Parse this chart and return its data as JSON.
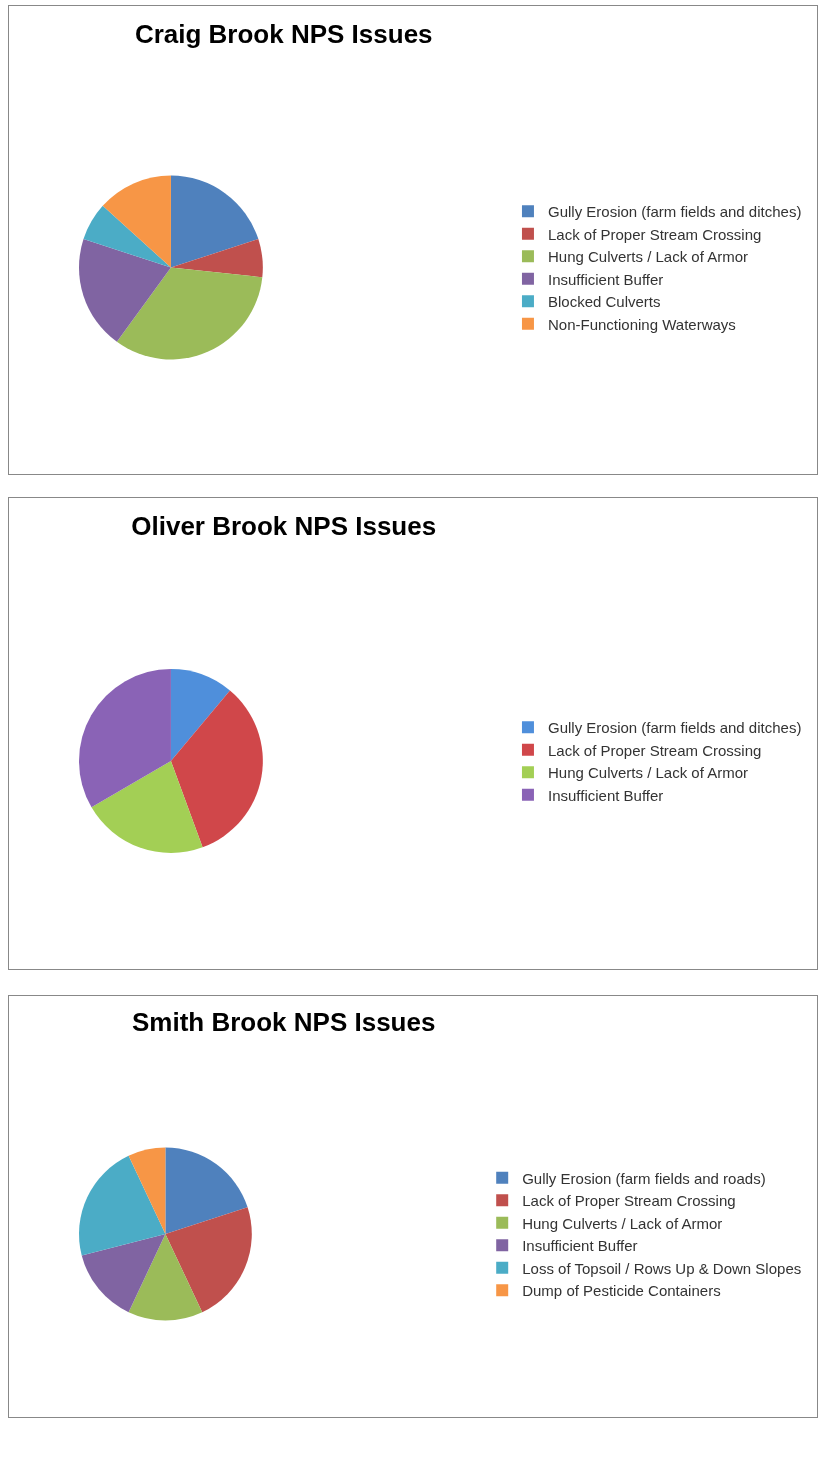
{
  "chart_data": [
    {
      "type": "pie",
      "title": "Craig Brook NPS Issues",
      "categories": [
        "Gully Erosion (farm fields and ditches)",
        "Lack of Proper Stream Crossing",
        "Hung Culverts / Lack of Armor",
        "Insufficient Buffer",
        "Blocked Culverts",
        "Non-Functioning Waterways"
      ],
      "values": [
        20,
        6.7,
        33.3,
        20,
        6.7,
        13.3
      ],
      "colors": [
        "#4f81bd",
        "#c0504d",
        "#9bbb59",
        "#8064a2",
        "#4bacc6",
        "#f79646"
      ],
      "legend": "right"
    },
    {
      "type": "pie",
      "title": "Oliver Brook NPS Issues",
      "categories": [
        "Gully Erosion (farm fields and ditches)",
        "Lack of Proper Stream Crossing",
        "Hung Culverts / Lack of Armor",
        "Insufficient Buffer"
      ],
      "values": [
        11.1,
        33.3,
        22.2,
        33.4
      ],
      "colors": [
        "#4f8fdb",
        "#d0474a",
        "#a3cf55",
        "#8a63b6"
      ],
      "legend": "right"
    },
    {
      "type": "pie",
      "title": "Smith Brook NPS Issues",
      "categories": [
        "Gully Erosion (farm fields and roads)",
        "Lack of Proper Stream Crossing",
        "Hung Culverts / Lack of Armor",
        "Insufficient Buffer",
        "Loss of Topsoil / Rows Up & Down Slopes",
        "Dump of Pesticide Containers"
      ],
      "values": [
        20,
        23,
        14,
        14,
        22,
        7
      ],
      "colors": [
        "#4f81bd",
        "#c0504d",
        "#9bbb59",
        "#8064a2",
        "#4bacc6",
        "#f79646"
      ],
      "legend": "right"
    }
  ]
}
